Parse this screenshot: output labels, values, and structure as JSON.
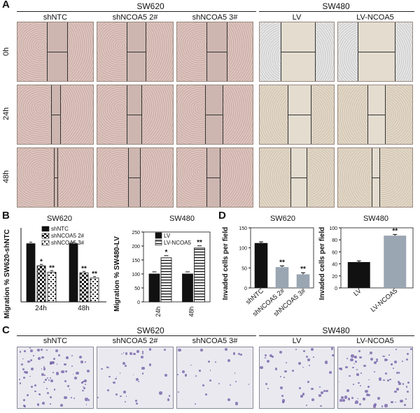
{
  "panelA": {
    "letter": "A",
    "groups": [
      {
        "title": "SW620",
        "columns": [
          "shNTC",
          "shNCOA5 2#",
          "shNCOA5 3#"
        ]
      },
      {
        "title": "SW480",
        "columns": [
          "LV",
          "LV-NCOA5"
        ]
      }
    ],
    "rows": [
      "0h",
      "24h",
      "48h"
    ]
  },
  "panelB": {
    "letter": "B",
    "ylabel_left": "Migration % SW620-shNTC",
    "ylabel_right": "Migration % SW480-LV"
  },
  "panelC": {
    "letter": "C",
    "groups": [
      {
        "title": "SW620",
        "columns": [
          "shNTC",
          "shNCOA5 2#",
          "shNCOA5 3#"
        ]
      },
      {
        "title": "SW480",
        "columns": [
          "LV",
          "LV-NCOA5"
        ]
      }
    ]
  },
  "panelD": {
    "letter": "D",
    "ylabel": "Invaded cells per field"
  },
  "colors": {
    "black": "#111111",
    "gray": "#9aa6b2",
    "pink": "#d9c0ba",
    "beige": "#ddd2c0",
    "crystal_violet": "#6f5aa5"
  },
  "chart_data": [
    {
      "id": "B-SW620",
      "type": "bar",
      "title": "SW620",
      "categories": [
        "24h",
        "48h"
      ],
      "series": [
        {
          "name": "shNTC",
          "values": [
            100,
            100
          ],
          "pattern": "solid"
        },
        {
          "name": "shNCOA5 2#",
          "values": [
            62,
            50
          ],
          "pattern": "check",
          "sig": [
            "*",
            "**"
          ]
        },
        {
          "name": "shNCOA5 3#",
          "values": [
            51,
            41
          ],
          "pattern": "check-light",
          "sig": [
            "**",
            "**"
          ]
        }
      ],
      "ylabel": "Migration % SW620-shNTC",
      "ylim": [
        0,
        120
      ],
      "ticks": [],
      "legend": "top-left"
    },
    {
      "id": "B-SW480",
      "type": "bar",
      "title": "SW480",
      "categories": [
        "24h",
        "48h"
      ],
      "series": [
        {
          "name": "LV",
          "values": [
            100,
            100
          ],
          "pattern": "solid"
        },
        {
          "name": "LV-NCOA5",
          "values": [
            158,
            193
          ],
          "pattern": "hstripe",
          "sig": [
            "*",
            "**"
          ]
        }
      ],
      "ylabel": "Migration % SW480-LV",
      "ylim": [
        0,
        250
      ],
      "ticks": [
        "0",
        "50",
        "100",
        "150",
        "200",
        "250"
      ],
      "legend": "top"
    },
    {
      "id": "D-SW620",
      "type": "bar",
      "title": "SW620",
      "categories": [
        "shNTC",
        "shNCOA5 2#",
        "shNCOA5 3#"
      ],
      "values": [
        112,
        52,
        34
      ],
      "errors": [
        3,
        3,
        4
      ],
      "sig": [
        "",
        "**",
        "**"
      ],
      "colors": [
        "#111111",
        "#9aa6b2",
        "#9aa6b2"
      ],
      "ylabel": "Invaded cells per field",
      "ylim": [
        0,
        150
      ],
      "ticks": [
        "0",
        "50",
        "100",
        "150"
      ]
    },
    {
      "id": "D-SW480",
      "type": "bar",
      "title": "SW480",
      "categories": [
        "LV",
        "LV-NCOA5"
      ],
      "values": [
        43,
        87
      ],
      "errors": [
        2,
        2
      ],
      "sig": [
        "",
        "**"
      ],
      "colors": [
        "#111111",
        "#9aa6b2"
      ],
      "ylabel": "Invaded cells per field",
      "ylim": [
        0,
        100
      ],
      "ticks": [
        "0",
        "20",
        "40",
        "60",
        "80",
        "100"
      ]
    }
  ]
}
